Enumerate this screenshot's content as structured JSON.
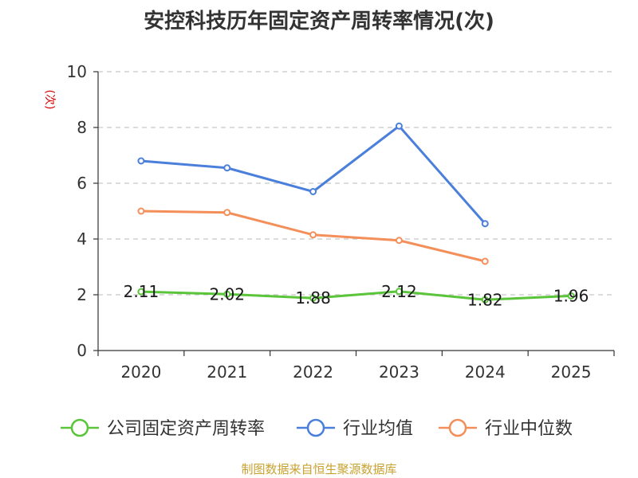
{
  "chart_data": {
    "type": "line",
    "title": "安控科技历年固定资产周转率情况(次)",
    "ylabel": "(次)",
    "xlabel": "",
    "categories": [
      "2020",
      "2021",
      "2022",
      "2023",
      "2024",
      "2025"
    ],
    "yticks": [
      "0",
      "2",
      "4",
      "6",
      "8",
      "10"
    ],
    "ylim": [
      0,
      10
    ],
    "grid": true,
    "legend_position": "bottom",
    "series": [
      {
        "name": "公司固定资产周转率",
        "color": "#5ac43a",
        "show_labels": true,
        "values": [
          2.11,
          2.02,
          1.88,
          2.12,
          1.82,
          1.96
        ],
        "labels": [
          "2.11",
          "2.02",
          "1.88",
          "2.12",
          "1.82",
          "1.96"
        ]
      },
      {
        "name": "行业均值",
        "color": "#4a7fdb",
        "show_labels": false,
        "values": [
          6.8,
          6.55,
          5.7,
          8.05,
          4.55,
          null
        ]
      },
      {
        "name": "行业中位数",
        "color": "#f48f5a",
        "show_labels": false,
        "values": [
          5.0,
          4.95,
          4.15,
          3.95,
          3.2,
          null
        ]
      }
    ],
    "source": "制图数据来自恒生聚源数据库"
  }
}
